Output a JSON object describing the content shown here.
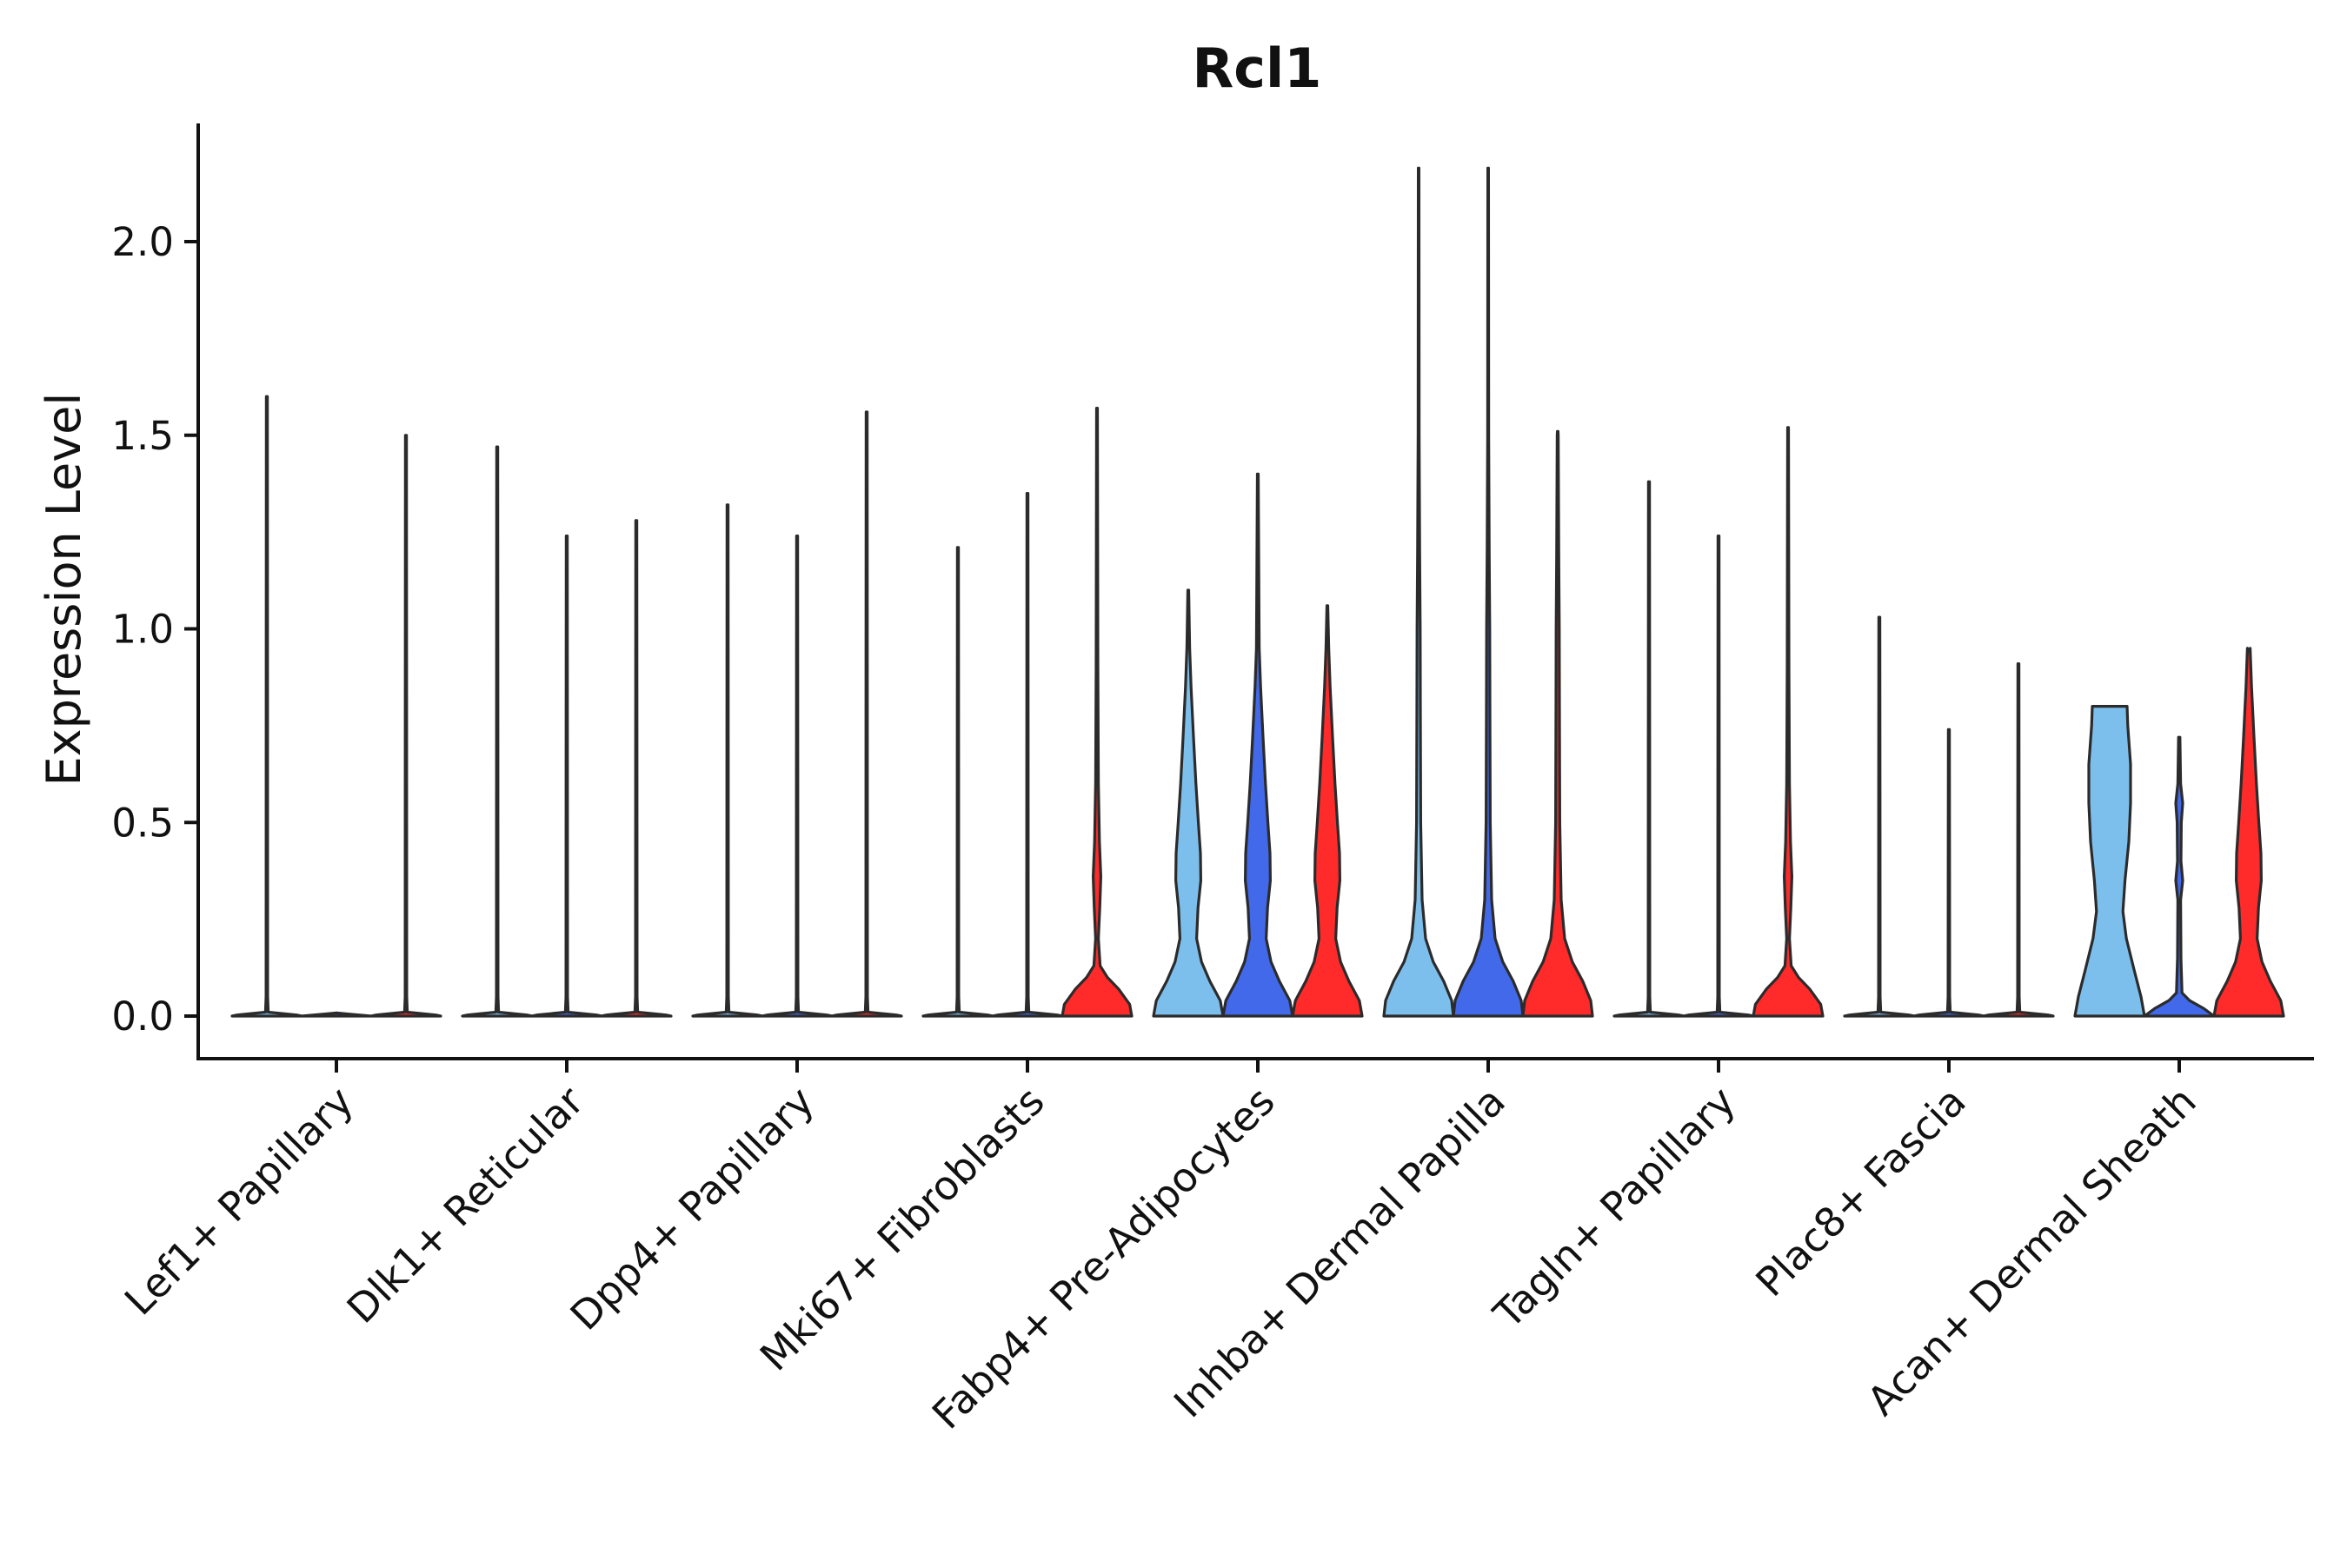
{
  "chart_data": {
    "type": "violin",
    "title": "Rcl1",
    "xlabel": "",
    "ylabel": "Expression Level",
    "ylim": [
      -0.11,
      2.3
    ],
    "yticks": [
      0.0,
      0.5,
      1.0,
      1.5,
      2.0
    ],
    "ytick_labels": [
      "0.0",
      "0.5",
      "1.0",
      "1.5",
      "2.0"
    ],
    "categories": [
      "Lef1+ Papillary",
      "Dlk1+ Reticular",
      "Dpp4+ Papillary",
      "Mki67+ Fibroblasts",
      "Fabp4+ Pre-Adipocytes",
      "Inhba+ Dermal Papilla",
      "Tagln+ Papillary",
      "Plac8+ Fascia",
      "Acan+ Dermal Sheath"
    ],
    "series": [
      {
        "name": "group-1",
        "color": "#7DBFEC",
        "max": [
          1.6,
          1.47,
          1.32,
          1.21,
          1.1,
          2.19,
          1.38,
          1.03,
          0.8
        ],
        "shape": [
          "spike",
          "spike",
          "spike",
          "spike",
          "bimodal-low",
          "wide-base",
          "spike",
          "spike",
          "plateau"
        ]
      },
      {
        "name": "group-2",
        "color": "#4169E9",
        "max": [
          0.0,
          1.24,
          1.24,
          1.35,
          1.4,
          2.19,
          1.24,
          0.74,
          0.72
        ],
        "shape": [
          "flat",
          "spike",
          "spike",
          "spike",
          "bimodal-low",
          "wide-base",
          "spike",
          "spike",
          "small"
        ]
      },
      {
        "name": "group-3",
        "color": "#FF2A2A",
        "max": [
          1.5,
          1.28,
          1.56,
          1.57,
          1.06,
          1.51,
          1.52,
          0.91,
          0.94
        ],
        "shape": [
          "spike",
          "spike",
          "spike",
          "base-red",
          "bimodal-low",
          "wide-base",
          "base-red",
          "spike",
          "bimodal-low"
        ]
      }
    ]
  }
}
